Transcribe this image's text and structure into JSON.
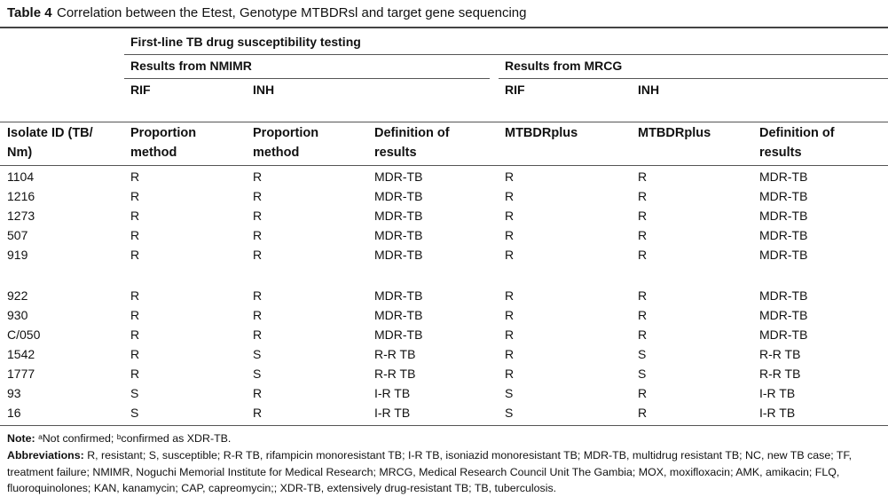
{
  "title": {
    "label": "Table 4",
    "text": "Correlation between the Etest, Genotype MTBDRsl and target gene sequencing"
  },
  "table": {
    "group_header": "First-line TB drug susceptibility testing",
    "subgroups": [
      "Results from NMIMR",
      "Results from MRCG"
    ],
    "drugs": [
      "RIF",
      "INH",
      "RIF",
      "INH"
    ],
    "columns": [
      "Isolate ID (TB/ Nm)",
      "Proportion method",
      "Proportion method",
      "Definition of results",
      "MTBDRplus",
      "MTBDRplus",
      "Definition of results"
    ],
    "rows": [
      [
        "1104",
        "R",
        "R",
        "MDR-TB",
        "R",
        "R",
        "MDR-TB"
      ],
      [
        "1216",
        "R",
        "R",
        "MDR-TB",
        "R",
        "R",
        "MDR-TB"
      ],
      [
        "1273",
        "R",
        "R",
        "MDR-TB",
        "R",
        "R",
        "MDR-TB"
      ],
      [
        "507",
        "R",
        "R",
        "MDR-TB",
        "R",
        "R",
        "MDR-TB"
      ],
      [
        "919",
        "R",
        "R",
        "MDR-TB",
        "R",
        "R",
        "MDR-TB"
      ],
      [
        "922",
        "R",
        "R",
        "MDR-TB",
        "R",
        "R",
        "MDR-TB"
      ],
      [
        "930",
        "R",
        "R",
        "MDR-TB",
        "R",
        "R",
        "MDR-TB"
      ],
      [
        "C/050",
        "R",
        "R",
        "MDR-TB",
        "R",
        "R",
        "MDR-TB"
      ],
      [
        "1542",
        "R",
        "S",
        "R-R TB",
        "R",
        "S",
        "R-R TB"
      ],
      [
        "1777",
        "R",
        "S",
        "R-R TB",
        "R",
        "S",
        "R-R TB"
      ],
      [
        "93",
        "S",
        "R",
        "I-R TB",
        "S",
        "R",
        "I-R TB"
      ],
      [
        "16",
        "S",
        "R",
        "I-R TB",
        "S",
        "R",
        "I-R TB"
      ]
    ]
  },
  "notes": {
    "note_label": "Note:",
    "note": "ᵃNot confirmed; ᵇconfirmed as XDR-TB.",
    "abbr_label": "Abbreviations:",
    "abbr": "R, resistant; S, susceptible; R-R TB, rifampicin monoresistant TB; I-R TB, isoniazid monoresistant TB; MDR-TB, multidrug resistant TB; NC, new TB case; TF, treatment failure; NMIMR, Noguchi Memorial Institute for Medical Research; MRCG, Medical Research Council Unit The Gambia; MOX, moxifloxacin; AMK, amikacin; FLQ, fluoroquinolones; KAN, kanamycin; CAP, capreomycin;; XDR-TB, extensively drug-resistant TB; TB, tuberculosis."
  }
}
